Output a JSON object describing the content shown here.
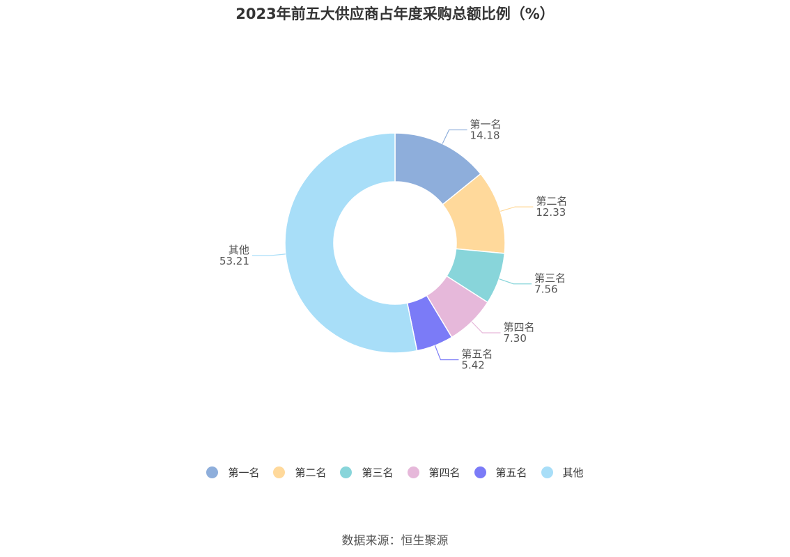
{
  "chart_data": {
    "type": "pie",
    "title": "2023年前五大供应商占年度采购总额比例（%）",
    "categories": [
      "第一名",
      "第二名",
      "第三名",
      "第四名",
      "第五名",
      "其他"
    ],
    "values": [
      14.18,
      12.33,
      7.56,
      7.3,
      5.42,
      53.21
    ],
    "value_labels": [
      "14.18",
      "12.33",
      "7.56",
      "7.30",
      "5.42",
      "53.21"
    ],
    "colors": [
      "#8EAEDB",
      "#FFD99B",
      "#88D5DA",
      "#E6B8DA",
      "#7B7BF7",
      "#A8DEF8"
    ],
    "donut": true,
    "legend_position": "bottom"
  },
  "footer": {
    "source": "数据来源：恒生聚源"
  }
}
